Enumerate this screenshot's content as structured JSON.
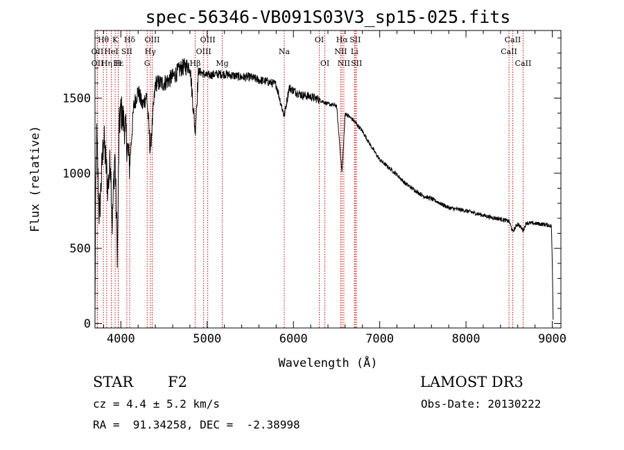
{
  "chart_data": {
    "type": "line",
    "title": "spec-56346-VB091S03V3_sp15-025.fits",
    "xlabel": "Wavelength (Å)",
    "ylabel": "Flux (relative)",
    "xlim": [
      3700,
      9100
    ],
    "ylim": [
      -30,
      1950
    ],
    "xticks": [
      4000,
      5000,
      6000,
      7000,
      8000,
      9000
    ],
    "yticks": [
      0,
      500,
      1000,
      1500
    ],
    "spectrum_anchors": {
      "x": [
        3700,
        3705,
        3720,
        3750,
        3800,
        3850,
        3880,
        3900,
        3930,
        3960,
        3980,
        4000,
        4050,
        4101,
        4150,
        4200,
        4250,
        4300,
        4340,
        4400,
        4500,
        4600,
        4700,
        4800,
        4861,
        4900,
        5000,
        5100,
        5200,
        5300,
        5400,
        5500,
        5600,
        5700,
        5800,
        5893,
        5950,
        6000,
        6100,
        6200,
        6300,
        6400,
        6500,
        6563,
        6600,
        6700,
        6800,
        6900,
        7000,
        7100,
        7200,
        7300,
        7400,
        7500,
        7600,
        7700,
        7800,
        7900,
        8000,
        8100,
        8200,
        8300,
        8400,
        8500,
        8542,
        8600,
        8662,
        8700,
        8800,
        8900,
        8990,
        9000,
        9010
      ],
      "y": [
        30,
        700,
        1250,
        700,
        1250,
        900,
        1100,
        650,
        1150,
        450,
        1300,
        1420,
        1300,
        1050,
        1450,
        1550,
        1450,
        1520,
        1150,
        1600,
        1600,
        1640,
        1700,
        1720,
        1280,
        1680,
        1650,
        1660,
        1660,
        1650,
        1640,
        1640,
        1620,
        1610,
        1590,
        1380,
        1570,
        1550,
        1520,
        1510,
        1490,
        1460,
        1450,
        1000,
        1400,
        1350,
        1280,
        1180,
        1090,
        1040,
        990,
        930,
        890,
        850,
        830,
        800,
        770,
        760,
        750,
        735,
        720,
        705,
        695,
        680,
        610,
        665,
        620,
        670,
        665,
        660,
        650,
        400,
        30
      ]
    },
    "lines": [
      {
        "label": "Hθ",
        "x": 3797,
        "row": 1
      },
      {
        "label": "OII",
        "x": 3727,
        "row": 2
      },
      {
        "label": "OII",
        "x": 3729,
        "row": 3
      },
      {
        "label": "K",
        "x": 3934,
        "row": 1
      },
      {
        "label": "HeI",
        "x": 3889,
        "row": 2
      },
      {
        "label": "Hε",
        "x": 3970,
        "row": 3
      },
      {
        "label": "H",
        "x": 3969,
        "row": 3
      },
      {
        "label": "Hη",
        "x": 3835,
        "row": 3
      },
      {
        "label": "SII",
        "x": 4069,
        "row": 2
      },
      {
        "label": "Hδ",
        "x": 4102,
        "row": 1
      },
      {
        "label": "OIII",
        "x": 4363,
        "row": 1
      },
      {
        "label": "Hγ",
        "x": 4341,
        "row": 2
      },
      {
        "label": "G",
        "x": 4305,
        "row": 3
      },
      {
        "label": "Hβ",
        "x": 4861,
        "row": 3
      },
      {
        "label": "OIII",
        "x": 5007,
        "row": 1
      },
      {
        "label": "OIII",
        "x": 4959,
        "row": 2
      },
      {
        "label": "Mg",
        "x": 5175,
        "row": 3
      },
      {
        "label": "Na",
        "x": 5894,
        "row": 2
      },
      {
        "label": "OI",
        "x": 6300,
        "row": 1
      },
      {
        "label": "OI",
        "x": 6364,
        "row": 3
      },
      {
        "label": "Hα",
        "x": 6563,
        "row": 1
      },
      {
        "label": "NII",
        "x": 6548,
        "row": 2
      },
      {
        "label": "NII",
        "x": 6584,
        "row": 3
      },
      {
        "label": "SII",
        "x": 6716,
        "row": 1
      },
      {
        "label": "Li",
        "x": 6708,
        "row": 2
      },
      {
        "label": "SII",
        "x": 6731,
        "row": 3
      },
      {
        "label": "CaII",
        "x": 8542,
        "row": 1
      },
      {
        "label": "CaII",
        "x": 8498,
        "row": 2
      },
      {
        "label": "CaII",
        "x": 8662,
        "row": 3
      }
    ]
  },
  "info": {
    "obj_class": "STAR",
    "subclass": "F2",
    "survey": "LAMOST DR3",
    "cz": "cz = 4.4 ± 5.2 km/s",
    "obs_date": "Obs-Date: 20130222",
    "radec": "RA =  91.34258, DEC =  -2.38998"
  },
  "colors": {
    "axis": "#000000",
    "spectrum": "#000000",
    "line_marker": "#cc0000"
  }
}
